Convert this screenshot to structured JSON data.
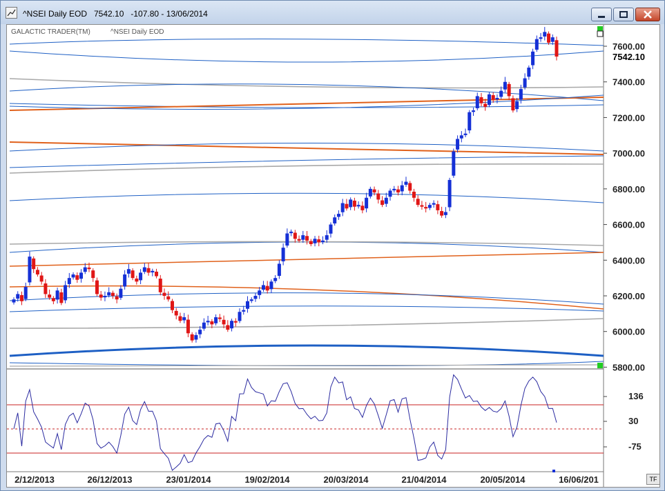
{
  "window": {
    "title_symbol": "^NSEI Daily EOD",
    "title_price": "7542.10",
    "title_change": "-107.80 - 13/06/2014",
    "minimize_label": "minimize",
    "maximize_label": "maximize",
    "close_label": "close"
  },
  "chart_header": {
    "product": "GALACTIC TRADER(TM)",
    "symbol": "^NSEI Daily EOD"
  },
  "tf_badge": "TF",
  "chart_data": [
    {
      "type": "candlestick",
      "title": "",
      "last_price_label": "7542.10",
      "last_price": 7542.1,
      "ylim": [
        5790,
        7720
      ],
      "y_ticks": [
        "7600.00",
        "7400.00",
        "7200.00",
        "7000.00",
        "6800.00",
        "6600.00",
        "6400.00",
        "6200.00",
        "6000.00",
        "5800.00"
      ],
      "x_ticks": [
        "2/12/2013",
        "26/12/2013",
        "23/01/2014",
        "19/02/2014",
        "20/03/2014",
        "21/04/2014",
        "20/05/2014",
        "16/06/201"
      ],
      "colors": {
        "up": "#1530d6",
        "down": "#e01616",
        "blue_line": "#1d5fc4",
        "orange_line": "#e0601a",
        "grey_line": "#a8a8a8"
      },
      "closes": [
        6180,
        6210,
        6170,
        6250,
        6420,
        6350,
        6320,
        6280,
        6210,
        6190,
        6170,
        6230,
        6160,
        6260,
        6300,
        6320,
        6290,
        6330,
        6360,
        6350,
        6300,
        6210,
        6190,
        6200,
        6220,
        6200,
        6180,
        6240,
        6320,
        6350,
        6300,
        6280,
        6330,
        6360,
        6330,
        6340,
        6310,
        6220,
        6200,
        6180,
        6120,
        6090,
        6060,
        6080,
        5990,
        5950,
        5980,
        6010,
        6050,
        6060,
        6040,
        6080,
        6070,
        6040,
        6010,
        6060,
        6050,
        6110,
        6120,
        6170,
        6180,
        6200,
        6230,
        6260,
        6230,
        6280,
        6300,
        6380,
        6470,
        6550,
        6560,
        6520,
        6510,
        6540,
        6510,
        6490,
        6520,
        6500,
        6510,
        6540,
        6600,
        6640,
        6660,
        6720,
        6690,
        6740,
        6700,
        6710,
        6680,
        6750,
        6800,
        6780,
        6740,
        6710,
        6750,
        6790,
        6800,
        6780,
        6820,
        6840,
        6790,
        6750,
        6710,
        6700,
        6690,
        6710,
        6720,
        6680,
        6650,
        6670,
        6850,
        7010,
        7080,
        7100,
        7110,
        7230,
        7240,
        7320,
        7280,
        7260,
        7330,
        7300,
        7310,
        7350,
        7400,
        7320,
        7240,
        7290,
        7360,
        7420,
        7480,
        7570,
        7640,
        7650,
        7680,
        7620,
        7650,
        7542.1
      ],
      "indicator": {
        "type": "line",
        "y_ticks": [
          "136",
          "30",
          "-75"
        ],
        "reference_levels": [
          100,
          16,
          -100
        ],
        "color": "#2a2aa0"
      }
    }
  ]
}
